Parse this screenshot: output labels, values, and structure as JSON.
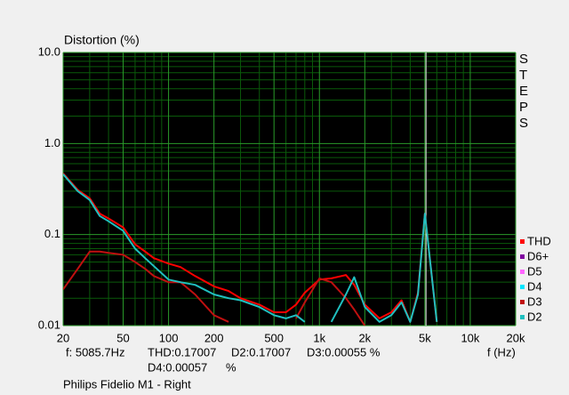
{
  "chart_data": {
    "type": "line",
    "title": "Distortion (%)",
    "xlabel": "f (Hz)",
    "side_label": "STEPS",
    "footer": "Philips Fidelio M1 - Right",
    "readout": {
      "freq": "f: 5085.7Hz",
      "thd": "THD:0.17007",
      "d2": "D2:0.17007",
      "d3": "D3:0.00055 %",
      "d4": "D4:0.00057",
      "unit": "%"
    },
    "cursor": 5085.7,
    "xscale": "log",
    "yscale": "log",
    "grid": true,
    "xlim": [
      20,
      20000
    ],
    "ylim": [
      0.01,
      10
    ],
    "xticks": [
      20,
      50,
      100,
      200,
      500,
      {
        "value": 1000,
        "label": "1k"
      },
      {
        "value": 2000,
        "label": "2k"
      },
      {
        "value": 5000,
        "label": "5k"
      },
      {
        "value": 10000,
        "label": "10k"
      },
      {
        "value": 20000,
        "label": "20k"
      }
    ],
    "yticks": [
      {
        "value": 10,
        "label": "10.0"
      },
      {
        "value": 1,
        "label": "1.0"
      },
      0.1,
      0.01
    ],
    "x_minor_ticks": [
      30,
      40,
      60,
      70,
      80,
      90,
      300,
      400,
      600,
      700,
      800,
      900,
      3000,
      4000,
      6000,
      7000,
      8000,
      9000
    ],
    "y_minor_ticks": [
      0.02,
      0.03,
      0.04,
      0.05,
      0.06,
      0.07,
      0.08,
      0.09,
      0.2,
      0.3,
      0.4,
      0.5,
      0.6,
      0.7,
      0.8,
      0.9,
      2,
      3,
      4,
      5,
      6,
      7,
      8,
      9
    ],
    "legend_position": "right",
    "x": [
      20,
      25,
      30,
      35,
      40,
      50,
      60,
      70,
      80,
      100,
      120,
      150,
      200,
      250,
      300,
      400,
      500,
      600,
      700,
      800,
      1000,
      1200,
      1500,
      1700,
      2000,
      2500,
      3000,
      3500,
      4000,
      4500,
      5000,
      6000,
      7000
    ],
    "series": [
      {
        "name": "THD",
        "color": "#ff0000",
        "values": [
          0.47,
          0.31,
          0.25,
          0.17,
          0.15,
          0.12,
          0.078,
          0.065,
          0.055,
          0.048,
          0.044,
          0.035,
          0.027,
          0.024,
          0.02,
          0.017,
          0.014,
          0.014,
          0.017,
          0.023,
          0.032,
          0.033,
          0.036,
          0.028,
          0.017,
          0.012,
          0.014,
          0.019,
          0.011,
          0.023,
          0.17,
          0.011,
          null
        ]
      },
      {
        "name": "D6+",
        "color": "#8000a0",
        "values": [
          null,
          null,
          null,
          null,
          null,
          null,
          null,
          null,
          null,
          null,
          null,
          null,
          null,
          null,
          null,
          null,
          null,
          null,
          null,
          null,
          null,
          null,
          null,
          null,
          null,
          null,
          null,
          null,
          null,
          null,
          null,
          null,
          null
        ]
      },
      {
        "name": "D5",
        "color": "#ff66ff",
        "values": [
          null,
          null,
          null,
          null,
          null,
          null,
          null,
          null,
          null,
          null,
          null,
          null,
          null,
          null,
          null,
          null,
          null,
          null,
          null,
          null,
          null,
          null,
          null,
          null,
          null,
          null,
          null,
          null,
          null,
          null,
          null,
          null,
          null
        ]
      },
      {
        "name": "D4",
        "color": "#00e5ff",
        "values": [
          null,
          null,
          null,
          null,
          null,
          null,
          null,
          null,
          null,
          null,
          null,
          null,
          null,
          null,
          null,
          null,
          null,
          null,
          null,
          null,
          null,
          null,
          null,
          null,
          null,
          null,
          null,
          null,
          null,
          null,
          null,
          null,
          null
        ]
      },
      {
        "name": "D3",
        "color": "#c01010",
        "values": [
          0.025,
          0.042,
          0.065,
          0.065,
          0.063,
          0.06,
          0.05,
          0.042,
          0.035,
          0.03,
          0.03,
          0.022,
          0.013,
          0.011,
          null,
          null,
          null,
          null,
          0.012,
          0.018,
          0.033,
          0.03,
          0.02,
          0.015,
          0.01,
          null,
          null,
          null,
          null,
          null,
          null,
          null,
          null
        ]
      },
      {
        "name": "D2",
        "color": "#20c0c0",
        "values": [
          0.46,
          0.3,
          0.24,
          0.16,
          0.14,
          0.11,
          0.07,
          0.055,
          0.045,
          0.032,
          0.03,
          0.028,
          0.022,
          0.02,
          0.019,
          0.016,
          0.013,
          0.012,
          0.013,
          0.011,
          null,
          0.011,
          0.022,
          0.034,
          0.016,
          0.011,
          0.013,
          0.018,
          0.011,
          0.022,
          0.17,
          0.011,
          null
        ]
      }
    ]
  }
}
